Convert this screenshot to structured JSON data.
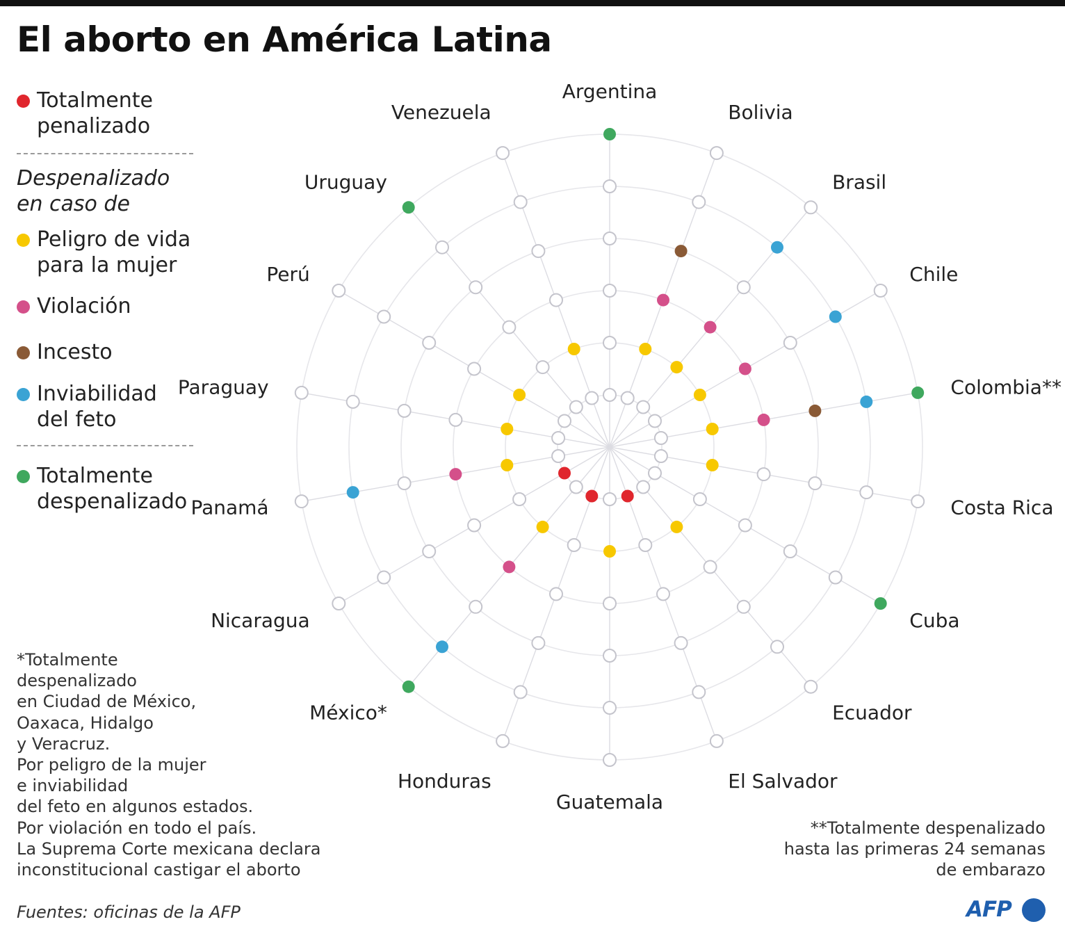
{
  "title": "El aborto en América Latina",
  "legend": {
    "penalized": {
      "line1": "Totalmente",
      "line2": "penalizado",
      "color": "#e0262d"
    },
    "heading": {
      "line1": "Despenalizado",
      "line2": "en caso de"
    },
    "life": {
      "line1": "Peligro de vida",
      "line2": "para la mujer",
      "color": "#f7c800"
    },
    "rape": {
      "label": "Violación",
      "color": "#d4508a"
    },
    "incest": {
      "label": "Incesto",
      "color": "#8a5a36"
    },
    "inviable": {
      "line1": "Inviabilidad",
      "line2": "del feto",
      "color": "#3aa3d4"
    },
    "decriminalized": {
      "line1": "Totalmente",
      "line2": "despenalizado",
      "color": "#3fa85e"
    }
  },
  "notes": {
    "mexico": "*Totalmente\ndespenalizado\nen Ciudad de México,\nOaxaca, Hidalgo\ny Veracruz.\nPor peligro de la mujer\ne inviabilidad\ndel feto en algunos estados.\nPor violación en todo el país.\nLa Suprema Corte mexicana declara\ninconstitucional castigar el aborto",
    "colombia": "**Totalmente despenalizado\nhasta las primeras 24 semanas\nde embarazo"
  },
  "source": "Fuentes: oficinas de la AFP",
  "logo_text": "AFP",
  "chart_data": {
    "type": "radial-dot",
    "title": "",
    "rings": [
      "Totalmente penalizado",
      "Peligro de vida para la mujer",
      "Violación",
      "Incesto",
      "Inviabilidad del feto",
      "Totalmente despenalizado"
    ],
    "ring_colors": [
      "#e0262d",
      "#f7c800",
      "#d4508a",
      "#8a5a36",
      "#3aa3d4",
      "#3fa85e"
    ],
    "countries": [
      {
        "name": "Argentina",
        "status": [
          0,
          0,
          0,
          0,
          0,
          1
        ]
      },
      {
        "name": "Bolivia",
        "status": [
          0,
          1,
          1,
          1,
          0,
          0
        ]
      },
      {
        "name": "Brasil",
        "status": [
          0,
          1,
          1,
          0,
          1,
          0
        ]
      },
      {
        "name": "Chile",
        "status": [
          0,
          1,
          1,
          0,
          1,
          0
        ]
      },
      {
        "name": "Colombia**",
        "status": [
          0,
          1,
          1,
          1,
          1,
          1
        ]
      },
      {
        "name": "Costa Rica",
        "status": [
          0,
          1,
          0,
          0,
          0,
          0
        ]
      },
      {
        "name": "Cuba",
        "status": [
          0,
          0,
          0,
          0,
          0,
          1
        ]
      },
      {
        "name": "Ecuador",
        "status": [
          0,
          1,
          0,
          0,
          0,
          0
        ]
      },
      {
        "name": "El Salvador",
        "status": [
          1,
          0,
          0,
          0,
          0,
          0
        ]
      },
      {
        "name": "Guatemala",
        "status": [
          0,
          1,
          0,
          0,
          0,
          0
        ]
      },
      {
        "name": "Honduras",
        "status": [
          1,
          0,
          0,
          0,
          0,
          0
        ]
      },
      {
        "name": "México*",
        "status": [
          0,
          1,
          1,
          0,
          1,
          1
        ]
      },
      {
        "name": "Nicaragua",
        "status": [
          1,
          0,
          0,
          0,
          0,
          0
        ]
      },
      {
        "name": "Panamá",
        "status": [
          0,
          1,
          1,
          0,
          1,
          0
        ]
      },
      {
        "name": "Paraguay",
        "status": [
          0,
          1,
          0,
          0,
          0,
          0
        ]
      },
      {
        "name": "Perú",
        "status": [
          0,
          1,
          0,
          0,
          0,
          0
        ]
      },
      {
        "name": "Uruguay",
        "status": [
          0,
          0,
          0,
          0,
          0,
          1
        ]
      },
      {
        "name": "Venezuela",
        "status": [
          0,
          1,
          0,
          0,
          0,
          0
        ]
      }
    ]
  }
}
